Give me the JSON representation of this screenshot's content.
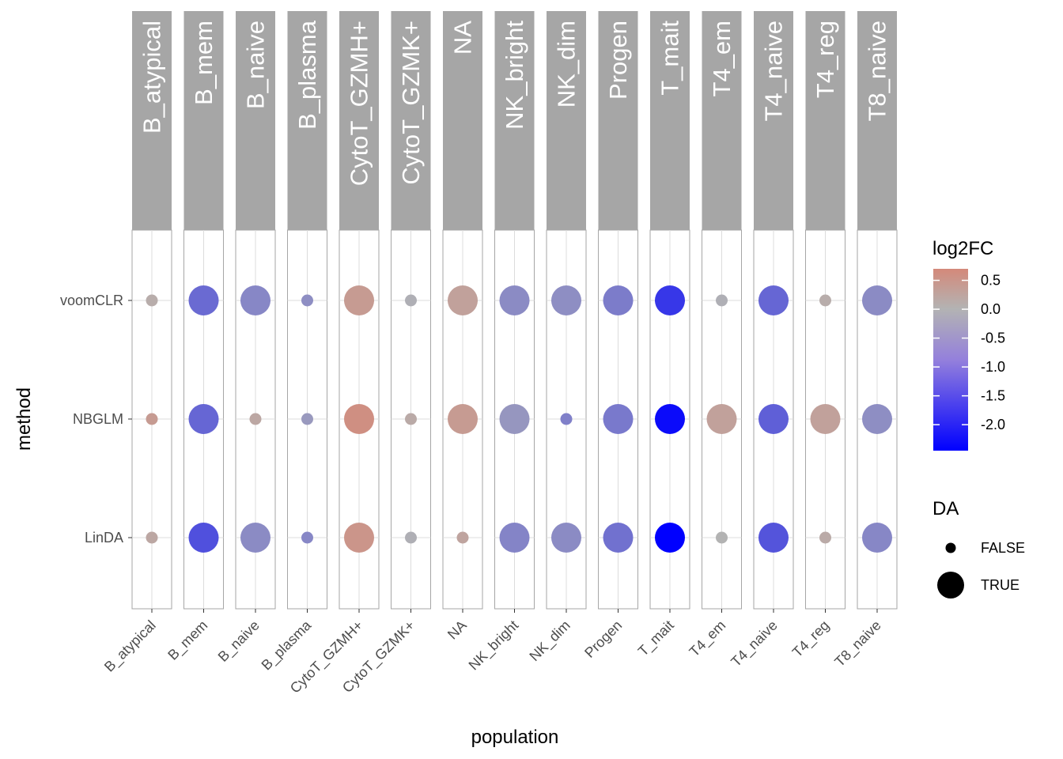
{
  "chart_data": {
    "type": "scatter",
    "title": "",
    "xlabel": "population",
    "ylabel": "method",
    "facet_by": "population",
    "populations": [
      "B_atypical",
      "B_mem",
      "B_naive",
      "B_plasma",
      "CytoT_GZMH+",
      "CytoT_GZMK+",
      "NA",
      "NK_bright",
      "NK_dim",
      "Progen",
      "T_mait",
      "T4_em",
      "T4_naive",
      "T4_reg",
      "T8_naive"
    ],
    "methods": [
      "voomCLR",
      "NBGLM",
      "LinDA"
    ],
    "grid": true,
    "color_legend": {
      "title": "log2FC",
      "ticks": [
        0.5,
        0.0,
        -0.5,
        -1.0,
        -1.5,
        -2.0
      ],
      "tick_labels": [
        "0.5",
        "0.0",
        "-0.5",
        "-1.0",
        "-1.5",
        "-2.0"
      ],
      "range": [
        -2.45,
        0.7
      ],
      "color_low": "#0000ff",
      "color_mid": "#b3b3b3",
      "color_high": "#d4897a"
    },
    "size_legend": {
      "title": "DA",
      "entries": [
        {
          "label": "FALSE"
        },
        {
          "label": "TRUE"
        }
      ]
    },
    "series": [
      {
        "method": "voomCLR",
        "log2FC": [
          0.1,
          -1.0,
          -0.6,
          -0.5,
          0.4,
          -0.05,
          0.3,
          -0.55,
          -0.5,
          -0.75,
          -1.7,
          -0.05,
          -1.05,
          0.1,
          -0.55
        ],
        "DA": [
          false,
          true,
          true,
          false,
          true,
          false,
          true,
          true,
          true,
          true,
          true,
          false,
          true,
          false,
          true
        ]
      },
      {
        "method": "NBGLM",
        "log2FC": [
          0.4,
          -1.05,
          0.2,
          -0.35,
          0.6,
          0.15,
          0.4,
          -0.4,
          -0.7,
          -0.8,
          -2.3,
          0.3,
          -1.15,
          0.3,
          -0.5
        ],
        "DA": [
          false,
          true,
          false,
          false,
          true,
          false,
          true,
          true,
          false,
          true,
          true,
          true,
          true,
          true,
          true
        ]
      },
      {
        "method": "LinDA",
        "log2FC": [
          0.2,
          -1.35,
          -0.55,
          -0.6,
          0.5,
          -0.05,
          0.25,
          -0.65,
          -0.55,
          -0.9,
          -2.45,
          0.0,
          -1.3,
          0.15,
          -0.6
        ],
        "DA": [
          false,
          true,
          true,
          false,
          true,
          false,
          false,
          true,
          true,
          true,
          true,
          false,
          true,
          false,
          true
        ]
      }
    ]
  }
}
